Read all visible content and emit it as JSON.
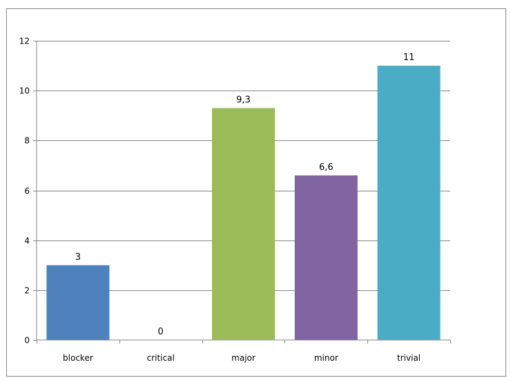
{
  "chart_data": {
    "type": "bar",
    "categories": [
      "blocker",
      "critical",
      "major",
      "minor",
      "trivial"
    ],
    "values": [
      3,
      0,
      9.3,
      6.6,
      11
    ],
    "data_labels": [
      "3",
      "0",
      "9,3",
      "6,6",
      "11"
    ],
    "colors": [
      "#4f81bd",
      "#c0504d",
      "#9bbb59",
      "#8064a2",
      "#4bacc6"
    ],
    "ylim": [
      0,
      12
    ],
    "yticks": [
      0,
      2,
      4,
      6,
      8,
      10,
      12
    ],
    "ytick_labels": [
      "0",
      "2",
      "4",
      "6",
      "8",
      "10",
      "12"
    ],
    "grid": true,
    "legend": "none"
  }
}
